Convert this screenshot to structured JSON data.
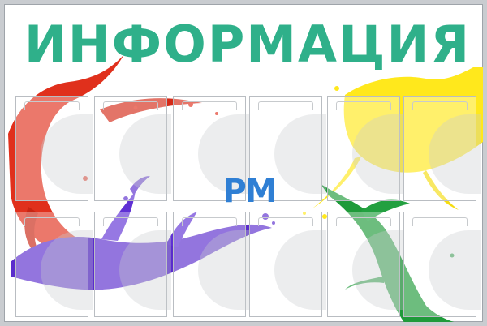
{
  "board": {
    "title": "ИНФОРМАЦИЯ",
    "logo_text": "РМ",
    "pocket_count": 12
  },
  "colors": {
    "title": "#2fb08a",
    "red_paint": "#e0301c",
    "purple_paint": "#5a2ccc",
    "yellow_paint": "#ffe81c",
    "green_paint": "#1f9a3a",
    "logo": "#2f7fd4",
    "frame": "#c9ccd0"
  }
}
